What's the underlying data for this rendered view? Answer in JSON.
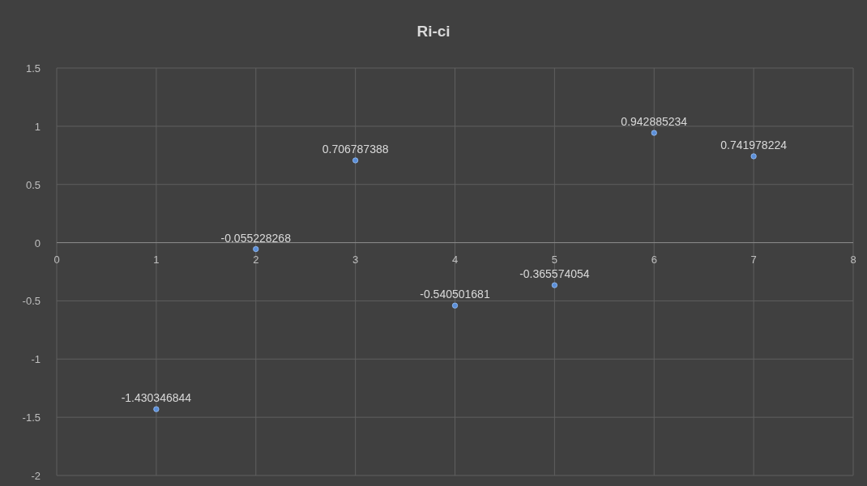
{
  "chart_data": {
    "type": "scatter",
    "title": "Ri-ci",
    "x": [
      1,
      2,
      3,
      4,
      5,
      6,
      7
    ],
    "series": [
      {
        "color": "#5b8fd9",
        "values": [
          -1.430346844,
          -0.055228268,
          0.706787388,
          -0.540501681,
          -0.365574054,
          0.942885234,
          0.741978224
        ]
      }
    ],
    "data_labels": true,
    "marker": "circle",
    "grid": true,
    "xlim": [
      0,
      8
    ],
    "xticks": [
      0,
      1,
      2,
      3,
      4,
      5,
      6,
      7,
      8
    ],
    "ylim": [
      -2,
      1.5
    ],
    "yticks": [
      -2,
      -1.5,
      -1,
      -0.5,
      0,
      0.5,
      1,
      1.5
    ]
  }
}
